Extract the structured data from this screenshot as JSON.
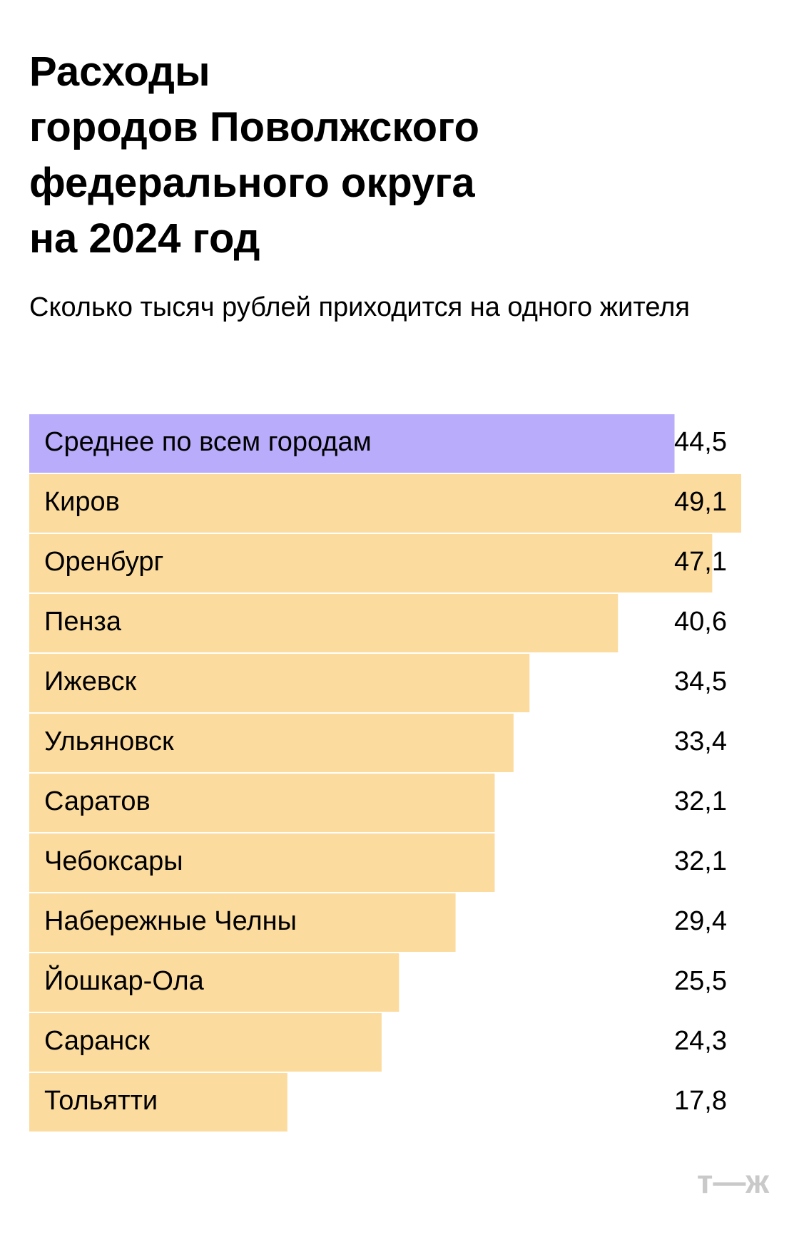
{
  "chart_data": {
    "type": "barh",
    "title": [
      "Расходы",
      "городов Поволжского",
      "федерального округа",
      "на 2024 год"
    ],
    "subtitle": "Сколько тысяч рублей приходится на одного жителя",
    "categories": [
      "Среднее по всем городам",
      "Киров",
      "Оренбург",
      "Пенза",
      "Ижевск",
      "Ульяновск",
      "Саратов",
      "Чебоксары",
      "Набережные Челны",
      "Йошкар-Ола",
      "Саранск",
      "Тольятти"
    ],
    "values": [
      44.5,
      49.1,
      47.1,
      40.6,
      34.5,
      33.4,
      32.1,
      32.1,
      29.4,
      25.5,
      24.3,
      17.8
    ],
    "value_labels": [
      "44,5",
      "49,1",
      "47,1",
      "40,6",
      "34,5",
      "33,4",
      "32,1",
      "32,1",
      "29,4",
      "25,5",
      "24,3",
      "17,8"
    ],
    "colors": [
      "#b9acfa",
      "#fcdc9e",
      "#fcdc9e",
      "#fcdc9e",
      "#fcdc9e",
      "#fcdc9e",
      "#fcdc9e",
      "#fcdc9e",
      "#fcdc9e",
      "#fcdc9e",
      "#fcdc9e",
      "#fcdc9e"
    ],
    "logo": "т—ж"
  }
}
